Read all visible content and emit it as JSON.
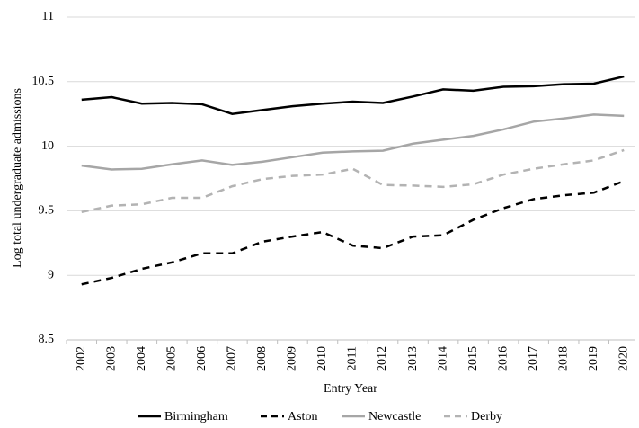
{
  "chart_data": {
    "type": "line",
    "y_label": "Log total undergraduate admissions",
    "x_label": "Entry Year",
    "categories": [
      "2002",
      "2003",
      "2004",
      "2005",
      "2006",
      "2007",
      "2008",
      "2009",
      "2010",
      "2011",
      "2012",
      "2013",
      "2014",
      "2015",
      "2016",
      "2017",
      "2018",
      "2019",
      "2020"
    ],
    "ylim": [
      8.5,
      11
    ],
    "yticks": [
      8.5,
      9,
      9.5,
      10,
      10.5,
      11
    ],
    "grid": true,
    "legend": "bottom",
    "series": [
      {
        "name": "Birmingham",
        "color": "#000000",
        "dashed": false,
        "values": [
          10.36,
          10.38,
          10.33,
          10.335,
          10.325,
          10.25,
          10.28,
          10.31,
          10.33,
          10.345,
          10.335,
          10.385,
          10.44,
          10.43,
          10.46,
          10.465,
          10.48,
          10.485,
          10.54
        ]
      },
      {
        "name": "Aston",
        "color": "#000000",
        "dashed": true,
        "values": [
          8.93,
          8.98,
          9.05,
          9.1,
          9.17,
          9.17,
          9.26,
          9.3,
          9.335,
          9.23,
          9.21,
          9.3,
          9.31,
          9.43,
          9.52,
          9.59,
          9.62,
          9.64,
          9.73
        ]
      },
      {
        "name": "Newcastle",
        "color": "#a6a6a6",
        "dashed": false,
        "values": [
          9.85,
          9.82,
          9.825,
          9.86,
          9.89,
          9.855,
          9.88,
          9.915,
          9.95,
          9.96,
          9.965,
          10.02,
          10.05,
          10.08,
          10.13,
          10.19,
          10.215,
          10.245,
          10.235
        ]
      },
      {
        "name": "Derby",
        "color": "#b3b3b3",
        "dashed": true,
        "values": [
          9.49,
          9.54,
          9.55,
          9.6,
          9.6,
          9.69,
          9.745,
          9.77,
          9.78,
          9.825,
          9.7,
          9.695,
          9.685,
          9.705,
          9.78,
          9.825,
          9.86,
          9.89,
          9.97
        ]
      }
    ]
  }
}
